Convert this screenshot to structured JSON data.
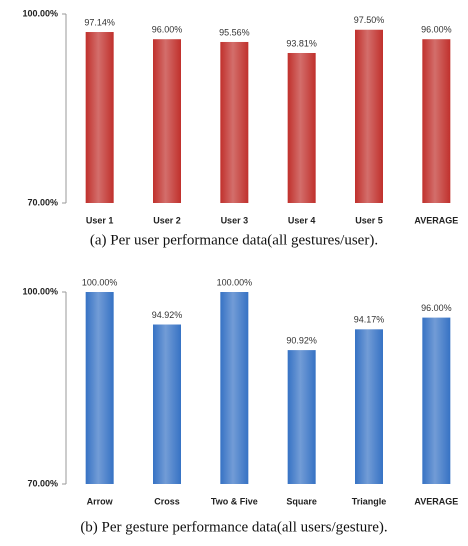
{
  "chart_data": [
    {
      "type": "bar",
      "caption": "(a) Per user performance data(all gestures/user).",
      "categories": [
        "User 1",
        "User 2",
        "User 3",
        "User 4",
        "User 5",
        "AVERAGE"
      ],
      "values": [
        97.14,
        96.0,
        95.56,
        93.81,
        97.5,
        96.0
      ],
      "value_labels": [
        "97.14%",
        "96.00%",
        "95.56%",
        "93.81%",
        "97.50%",
        "96.00%"
      ],
      "color": "#c0302c",
      "ylim": [
        70,
        100
      ],
      "yticks": [
        {
          "value": 70,
          "label": "70.00%"
        },
        {
          "value": 100,
          "label": "100.00%"
        }
      ]
    },
    {
      "type": "bar",
      "caption": "(b) Per gesture performance data(all users/gesture).",
      "categories": [
        "Arrow",
        "Cross",
        "Two & Five",
        "Square",
        "Triangle",
        "AVERAGE"
      ],
      "values": [
        100.0,
        94.92,
        100.0,
        90.92,
        94.17,
        96.0
      ],
      "value_labels": [
        "100.00%",
        "94.92%",
        "100.00%",
        "90.92%",
        "94.17%",
        "96.00%"
      ],
      "color": "#3672c4",
      "ylim": [
        70,
        100
      ],
      "yticks": [
        {
          "value": 70,
          "label": "70.00%"
        },
        {
          "value": 100,
          "label": "100.00%"
        }
      ]
    }
  ]
}
